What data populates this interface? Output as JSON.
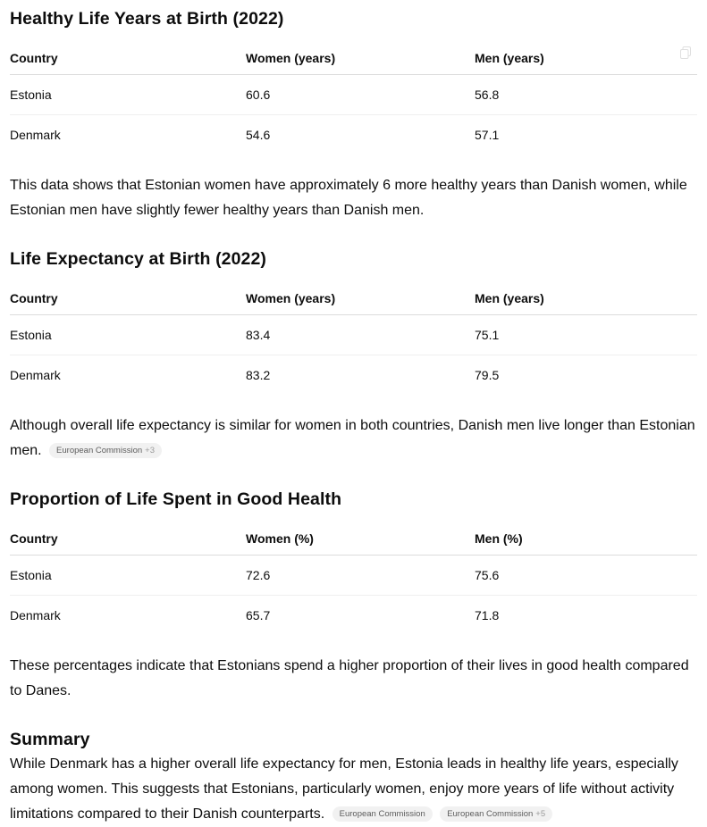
{
  "sections": [
    {
      "title": "Healthy Life Years at Birth (2022)",
      "headers": [
        "Country",
        "Women (years)",
        "Men (years)"
      ],
      "rows": [
        [
          "Estonia",
          "60.6",
          "56.8"
        ],
        [
          "Denmark",
          "54.6",
          "57.1"
        ]
      ],
      "note": "This data shows that Estonian women have approximately 6 more healthy years than Danish women, while Estonian men have slightly fewer healthy years than Danish men."
    },
    {
      "title": "Life Expectancy at Birth (2022)",
      "headers": [
        "Country",
        "Women (years)",
        "Men (years)"
      ],
      "rows": [
        [
          "Estonia",
          "83.4",
          "75.1"
        ],
        [
          "Denmark",
          "83.2",
          "79.5"
        ]
      ],
      "note": "Although overall life expectancy is similar for women in both countries, Danish men live longer than Estonian men.",
      "chips": [
        {
          "source": "European Commission",
          "more": "+3"
        }
      ]
    },
    {
      "title": "Proportion of Life Spent in Good Health",
      "headers": [
        "Country",
        "Women (%)",
        "Men (%)"
      ],
      "rows": [
        [
          "Estonia",
          "72.6",
          "75.6"
        ],
        [
          "Denmark",
          "65.7",
          "71.8"
        ]
      ],
      "note": "These percentages indicate that Estonians spend a higher proportion of their lives in good health compared to Danes."
    }
  ],
  "summary": {
    "title": "Summary",
    "text": "While Denmark has a higher overall life expectancy for men, Estonia leads in healthy life years, especially among women. This suggests that Estonians, particularly women, enjoy more years of life without activity limitations compared to their Danish counterparts.",
    "chips": [
      {
        "source": "European Commission",
        "more": ""
      },
      {
        "source": "European Commission",
        "more": "+5"
      }
    ]
  },
  "icons": {
    "copy": "copy-icon"
  }
}
